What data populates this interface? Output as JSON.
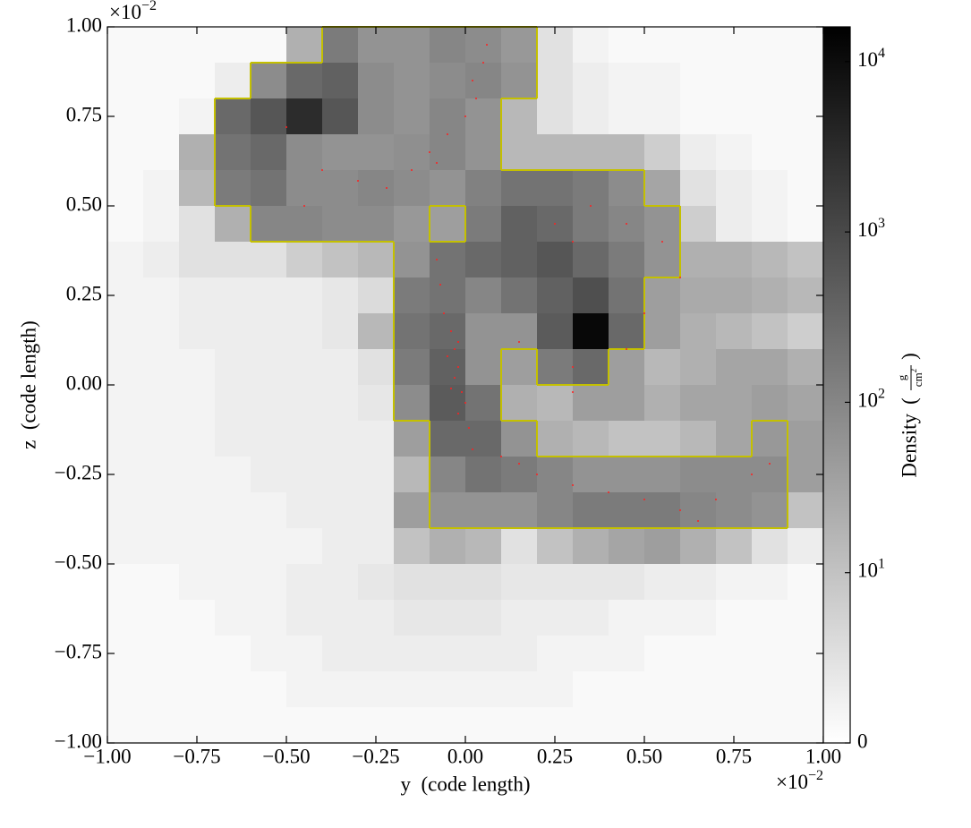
{
  "chart_data": {
    "type": "heatmap",
    "xlabel": "y  (code length)",
    "ylabel": "z  (code length)",
    "xlim": [
      -1,
      1
    ],
    "ylim": [
      -1,
      1
    ],
    "xticks": [
      {
        "value": -1,
        "label": "−1.00"
      },
      {
        "value": -0.75,
        "label": "−0.75"
      },
      {
        "value": -0.5,
        "label": "−0.50"
      },
      {
        "value": -0.25,
        "label": "−0.25"
      },
      {
        "value": 0,
        "label": "0.00"
      },
      {
        "value": 0.25,
        "label": "0.25"
      },
      {
        "value": 0.5,
        "label": "0.50"
      },
      {
        "value": 0.75,
        "label": "0.75"
      },
      {
        "value": 1,
        "label": "1.00"
      }
    ],
    "yticks": [
      {
        "value": -1,
        "label": "−1.00"
      },
      {
        "value": -0.75,
        "label": "−0.75"
      },
      {
        "value": -0.5,
        "label": "−0.50"
      },
      {
        "value": -0.25,
        "label": "−0.25"
      },
      {
        "value": 0,
        "label": "0.00"
      },
      {
        "value": 0.25,
        "label": "0.25"
      },
      {
        "value": 0.5,
        "label": "0.50"
      },
      {
        "value": 0.75,
        "label": "0.75"
      },
      {
        "value": 1,
        "label": "1.00"
      }
    ],
    "x_offset": {
      "base": "×10",
      "exp": "−2"
    },
    "y_offset": {
      "base": "×10",
      "exp": "−2"
    },
    "colormap": "gray_r",
    "color_scale": "symlog",
    "linthresh": 10,
    "clim": [
      0,
      16000
    ],
    "values": [
      [
        1,
        1,
        1,
        1,
        1,
        20,
        150,
        60,
        60,
        100,
        80,
        50,
        5,
        2,
        1,
        1,
        1,
        1,
        1,
        1
      ],
      [
        1,
        1,
        1,
        3,
        80,
        300,
        400,
        80,
        60,
        80,
        100,
        60,
        5,
        3,
        2,
        2,
        1,
        1,
        1,
        1
      ],
      [
        1,
        1,
        2,
        300,
        600,
        3000,
        600,
        80,
        60,
        100,
        60,
        15,
        5,
        3,
        2,
        2,
        1,
        1,
        1,
        1
      ],
      [
        1,
        1,
        20,
        200,
        300,
        80,
        60,
        60,
        70,
        100,
        60,
        15,
        15,
        15,
        15,
        8,
        3,
        2,
        1,
        1
      ],
      [
        1,
        2,
        15,
        150,
        200,
        80,
        80,
        100,
        80,
        60,
        120,
        200,
        200,
        150,
        80,
        30,
        5,
        3,
        2,
        1
      ],
      [
        1,
        2,
        5,
        20,
        100,
        100,
        80,
        80,
        50,
        40,
        150,
        400,
        300,
        150,
        100,
        60,
        8,
        3,
        2,
        1
      ],
      [
        2,
        3,
        5,
        5,
        5,
        8,
        10,
        15,
        60,
        200,
        300,
        400,
        600,
        300,
        150,
        60,
        20,
        20,
        15,
        10
      ],
      [
        2,
        2,
        3,
        3,
        3,
        3,
        4,
        6,
        150,
        200,
        100,
        200,
        400,
        800,
        200,
        40,
        25,
        25,
        20,
        15
      ],
      [
        2,
        2,
        3,
        3,
        3,
        3,
        4,
        15,
        200,
        300,
        60,
        60,
        500,
        12000,
        300,
        40,
        20,
        15,
        10,
        8
      ],
      [
        2,
        2,
        2,
        3,
        3,
        3,
        3,
        5,
        150,
        400,
        60,
        40,
        150,
        300,
        40,
        15,
        20,
        30,
        30,
        20
      ],
      [
        2,
        2,
        2,
        3,
        3,
        3,
        3,
        4,
        80,
        500,
        200,
        20,
        15,
        40,
        40,
        20,
        30,
        30,
        40,
        30
      ],
      [
        2,
        2,
        2,
        3,
        3,
        3,
        3,
        3,
        40,
        300,
        300,
        60,
        20,
        15,
        10,
        10,
        15,
        30,
        50,
        40
      ],
      [
        2,
        2,
        2,
        2,
        3,
        3,
        3,
        3,
        15,
        100,
        200,
        150,
        100,
        60,
        60,
        60,
        80,
        80,
        80,
        40
      ],
      [
        2,
        2,
        2,
        2,
        2,
        3,
        3,
        3,
        40,
        60,
        60,
        60,
        100,
        150,
        150,
        150,
        100,
        80,
        60,
        10
      ],
      [
        2,
        2,
        2,
        2,
        2,
        2,
        3,
        3,
        10,
        20,
        15,
        5,
        10,
        20,
        30,
        40,
        20,
        10,
        5,
        3
      ],
      [
        1,
        1,
        2,
        2,
        2,
        3,
        3,
        4,
        5,
        5,
        5,
        4,
        4,
        4,
        4,
        3,
        3,
        2,
        2,
        1
      ],
      [
        1,
        1,
        1,
        2,
        2,
        3,
        3,
        3,
        4,
        4,
        4,
        3,
        3,
        3,
        2,
        2,
        2,
        1,
        1,
        1
      ],
      [
        1,
        1,
        1,
        1,
        2,
        2,
        3,
        3,
        3,
        3,
        3,
        3,
        2,
        2,
        2,
        1,
        1,
        1,
        1,
        1
      ],
      [
        1,
        1,
        1,
        1,
        1,
        2,
        2,
        2,
        2,
        2,
        2,
        2,
        2,
        1,
        1,
        1,
        1,
        1,
        1,
        1
      ],
      [
        1,
        1,
        1,
        1,
        1,
        1,
        1,
        1,
        1,
        1,
        1,
        1,
        1,
        1,
        1,
        1,
        1,
        1,
        1,
        1
      ]
    ],
    "contour": {
      "level": 50,
      "color": "#c4c000"
    },
    "particles": {
      "color": "#ff2020",
      "x": [
        -0.04,
        -0.03,
        -0.02,
        -0.05,
        -0.03,
        -0.01,
        0.0,
        -0.02,
        0.01,
        0.02,
        -0.06,
        -0.07,
        -0.08,
        -0.04,
        -0.02,
        0.02,
        0.03,
        0.0,
        -0.05,
        -0.1,
        -0.15,
        -0.22,
        -0.3,
        -0.4,
        -0.5,
        -0.45,
        0.05,
        0.06,
        -0.08,
        0.25,
        0.3,
        0.35,
        0.45,
        0.55,
        0.6,
        0.5,
        0.45,
        0.3,
        0.3,
        0.15,
        0.1,
        0.2,
        0.3,
        0.4,
        0.5,
        0.6,
        0.7,
        0.8,
        0.85,
        0.65,
        0.15
      ],
      "y": [
        0.15,
        0.1,
        0.05,
        0.08,
        0.02,
        -0.02,
        -0.05,
        -0.08,
        -0.12,
        -0.18,
        0.2,
        0.28,
        0.35,
        -0.01,
        0.12,
        0.85,
        0.8,
        0.75,
        0.7,
        0.65,
        0.6,
        0.55,
        0.57,
        0.6,
        0.72,
        0.5,
        0.9,
        0.95,
        0.62,
        0.45,
        0.4,
        0.5,
        0.45,
        0.4,
        0.3,
        0.2,
        0.1,
        0.05,
        -0.02,
        0.12,
        -0.2,
        -0.25,
        -0.28,
        -0.3,
        -0.32,
        -0.35,
        -0.32,
        -0.25,
        -0.22,
        -0.38,
        -0.22
      ]
    },
    "colorbar": {
      "label": "Density",
      "unit": {
        "open": "(",
        "num": "g",
        "den": "cm",
        "exp": "2",
        "close": ")"
      },
      "ticks": [
        0,
        {
          "value": 10,
          "label": "10",
          "sup": "1"
        },
        {
          "value": 100,
          "label": "10",
          "sup": "2"
        },
        {
          "value": 1000,
          "label": "10",
          "sup": "3"
        },
        {
          "value": 10000,
          "label": "10",
          "sup": "4"
        }
      ]
    }
  }
}
